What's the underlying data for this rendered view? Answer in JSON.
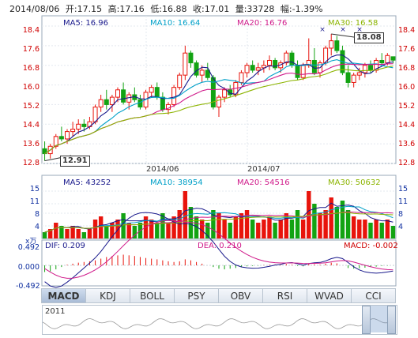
{
  "header": {
    "date": "2014/08/06",
    "open": "开:17.15",
    "high": "高:17.16",
    "low": "低:16.88",
    "close": "收:17.01",
    "volume": "量:33728",
    "change": "幅:-1.39%"
  },
  "price_panel": {
    "ma_labels": {
      "ma5": "MA5: 16.96",
      "ma10": "MA10: 16.64",
      "ma20": "MA20: 16.76",
      "ma30": "MA30: 16.58"
    },
    "y_ticks": [
      "18.4",
      "17.6",
      "16.8",
      "16.0",
      "15.2",
      "14.4",
      "13.6",
      "12.8"
    ],
    "x_ticks": [
      "2014/06",
      "2014/07"
    ],
    "high_callout": "18.08",
    "low_callout": "12.91",
    "colors": {
      "up": "#e8140c",
      "down": "#12a312",
      "ma5": "#1a1a8c",
      "ma10": "#00a0c8",
      "ma20": "#d01a8a",
      "ma30": "#8cb400"
    }
  },
  "volume_panel": {
    "ma_labels": {
      "ma5": "MA5: 43252",
      "ma10": "MA10: 38954",
      "ma20": "MA20: 54516",
      "ma30": "MA30: 50632"
    },
    "y_ticks": [
      "15",
      "11",
      "8",
      "4"
    ],
    "unit": "x万"
  },
  "macd_panel": {
    "labels": {
      "dif": "DIF: 0.209",
      "dea": "DEA: 0.210",
      "macd": "MACD: -0.002"
    },
    "y_ticks": [
      "0.492",
      "0.000",
      "-0.492"
    ]
  },
  "tabs": [
    "MACD",
    "KDJ",
    "BOLL",
    "PSY",
    "OBV",
    "RSI",
    "WVAD",
    "CCI"
  ],
  "active_tab": "MACD",
  "navigator": {
    "year": "2011"
  },
  "chart_data": {
    "type": "candlestick",
    "x_axis_labels": [
      "2014/06",
      "2014/07"
    ],
    "ylim": [
      12.8,
      18.4
    ],
    "candles": [
      {
        "o": 13.4,
        "h": 13.7,
        "l": 12.91,
        "c": 13.2
      },
      {
        "o": 13.2,
        "h": 13.6,
        "l": 13.0,
        "c": 13.5
      },
      {
        "o": 13.5,
        "h": 14.0,
        "l": 13.4,
        "c": 13.9
      },
      {
        "o": 13.9,
        "h": 14.3,
        "l": 13.7,
        "c": 13.8
      },
      {
        "o": 13.8,
        "h": 14.2,
        "l": 13.6,
        "c": 14.1
      },
      {
        "o": 14.1,
        "h": 14.5,
        "l": 13.9,
        "c": 14.2
      },
      {
        "o": 14.2,
        "h": 14.6,
        "l": 14.0,
        "c": 14.4
      },
      {
        "o": 14.4,
        "h": 14.6,
        "l": 14.1,
        "c": 14.3
      },
      {
        "o": 14.3,
        "h": 14.7,
        "l": 14.2,
        "c": 14.5
      },
      {
        "o": 14.5,
        "h": 15.2,
        "l": 14.4,
        "c": 15.1
      },
      {
        "o": 15.1,
        "h": 15.6,
        "l": 14.9,
        "c": 15.4
      },
      {
        "o": 15.4,
        "h": 15.8,
        "l": 15.0,
        "c": 15.2
      },
      {
        "o": 15.2,
        "h": 15.6,
        "l": 14.9,
        "c": 15.5
      },
      {
        "o": 15.5,
        "h": 15.9,
        "l": 15.3,
        "c": 15.8
      },
      {
        "o": 15.8,
        "h": 16.1,
        "l": 15.2,
        "c": 15.3
      },
      {
        "o": 15.3,
        "h": 15.7,
        "l": 15.0,
        "c": 15.6
      },
      {
        "o": 15.6,
        "h": 15.9,
        "l": 15.3,
        "c": 15.4
      },
      {
        "o": 15.4,
        "h": 15.6,
        "l": 15.0,
        "c": 15.1
      },
      {
        "o": 15.1,
        "h": 15.8,
        "l": 15.0,
        "c": 15.7
      },
      {
        "o": 15.7,
        "h": 16.0,
        "l": 15.5,
        "c": 15.9
      },
      {
        "o": 15.9,
        "h": 16.1,
        "l": 15.4,
        "c": 15.5
      },
      {
        "o": 15.5,
        "h": 15.7,
        "l": 14.9,
        "c": 15.0
      },
      {
        "o": 15.0,
        "h": 15.3,
        "l": 14.8,
        "c": 15.2
      },
      {
        "o": 15.2,
        "h": 16.0,
        "l": 15.1,
        "c": 15.9
      },
      {
        "o": 15.9,
        "h": 16.5,
        "l": 15.8,
        "c": 16.4
      },
      {
        "o": 16.4,
        "h": 17.6,
        "l": 16.2,
        "c": 17.3
      },
      {
        "o": 17.3,
        "h": 17.4,
        "l": 16.7,
        "c": 16.9
      },
      {
        "o": 16.9,
        "h": 17.0,
        "l": 16.3,
        "c": 16.4
      },
      {
        "o": 16.4,
        "h": 16.8,
        "l": 16.1,
        "c": 16.6
      },
      {
        "o": 16.6,
        "h": 16.9,
        "l": 16.2,
        "c": 16.3
      },
      {
        "o": 16.3,
        "h": 16.4,
        "l": 15.0,
        "c": 15.1
      },
      {
        "o": 15.1,
        "h": 15.6,
        "l": 14.7,
        "c": 15.5
      },
      {
        "o": 15.5,
        "h": 15.9,
        "l": 15.3,
        "c": 15.8
      },
      {
        "o": 15.8,
        "h": 16.0,
        "l": 15.5,
        "c": 15.6
      },
      {
        "o": 15.6,
        "h": 16.2,
        "l": 15.5,
        "c": 16.1
      },
      {
        "o": 16.1,
        "h": 16.6,
        "l": 16.0,
        "c": 16.5
      },
      {
        "o": 16.5,
        "h": 16.9,
        "l": 16.3,
        "c": 16.8
      },
      {
        "o": 16.8,
        "h": 17.0,
        "l": 16.5,
        "c": 16.6
      },
      {
        "o": 16.6,
        "h": 16.9,
        "l": 16.4,
        "c": 16.7
      },
      {
        "o": 16.7,
        "h": 17.0,
        "l": 16.5,
        "c": 16.8
      },
      {
        "o": 16.8,
        "h": 17.2,
        "l": 16.6,
        "c": 17.0
      },
      {
        "o": 17.0,
        "h": 17.1,
        "l": 16.6,
        "c": 16.7
      },
      {
        "o": 16.7,
        "h": 17.0,
        "l": 16.5,
        "c": 16.9
      },
      {
        "o": 16.9,
        "h": 17.4,
        "l": 16.8,
        "c": 17.3
      },
      {
        "o": 17.3,
        "h": 17.4,
        "l": 16.7,
        "c": 16.8
      },
      {
        "o": 16.8,
        "h": 17.0,
        "l": 16.2,
        "c": 16.3
      },
      {
        "o": 16.3,
        "h": 16.9,
        "l": 16.2,
        "c": 16.8
      },
      {
        "o": 16.8,
        "h": 17.9,
        "l": 16.7,
        "c": 17.0
      },
      {
        "o": 17.0,
        "h": 17.5,
        "l": 16.4,
        "c": 16.5
      },
      {
        "o": 16.5,
        "h": 17.0,
        "l": 16.3,
        "c": 16.9
      },
      {
        "o": 16.9,
        "h": 17.6,
        "l": 16.8,
        "c": 17.5
      },
      {
        "o": 17.5,
        "h": 18.08,
        "l": 17.2,
        "c": 17.8
      },
      {
        "o": 17.8,
        "h": 18.0,
        "l": 17.3,
        "c": 17.4
      },
      {
        "o": 17.4,
        "h": 17.6,
        "l": 16.4,
        "c": 16.5
      },
      {
        "o": 16.5,
        "h": 16.8,
        "l": 15.9,
        "c": 16.1
      },
      {
        "o": 16.1,
        "h": 16.5,
        "l": 15.9,
        "c": 16.4
      },
      {
        "o": 16.4,
        "h": 16.7,
        "l": 16.2,
        "c": 16.5
      },
      {
        "o": 16.5,
        "h": 16.9,
        "l": 16.3,
        "c": 16.8
      },
      {
        "o": 16.8,
        "h": 17.0,
        "l": 16.5,
        "c": 16.6
      },
      {
        "o": 16.6,
        "h": 17.1,
        "l": 16.5,
        "c": 17.0
      },
      {
        "o": 17.0,
        "h": 17.3,
        "l": 16.8,
        "c": 16.9
      },
      {
        "o": 16.9,
        "h": 17.3,
        "l": 16.8,
        "c": 17.2
      },
      {
        "o": 17.15,
        "h": 17.16,
        "l": 16.88,
        "c": 17.01
      }
    ],
    "volume": [
      2,
      3,
      5,
      4,
      3,
      4,
      3,
      2,
      3,
      6,
      7,
      4,
      5,
      6,
      8,
      5,
      4,
      5,
      7,
      6,
      5,
      8,
      5,
      7,
      9,
      15,
      10,
      7,
      6,
      5,
      9,
      8,
      6,
      5,
      7,
      8,
      9,
      6,
      5,
      6,
      7,
      5,
      6,
      8,
      6,
      9,
      6,
      15,
      11,
      8,
      9,
      13,
      10,
      12,
      9,
      7,
      6,
      6,
      5,
      6,
      5,
      6,
      4
    ],
    "macd": {
      "dif_range": [
        -0.492,
        0.492
      ],
      "histogram": [
        -0.2,
        -0.18,
        -0.12,
        -0.05,
        0.02,
        0.05,
        0.08,
        0.1,
        0.12,
        0.15,
        0.2,
        0.25,
        0.28,
        0.3,
        0.32,
        0.3,
        0.28,
        0.25,
        0.22,
        0.2,
        0.18,
        0.15,
        0.12,
        0.1,
        0.12,
        0.18,
        0.15,
        0.1,
        0.05,
        0.0,
        -0.05,
        -0.1,
        -0.12,
        -0.1,
        -0.08,
        -0.05,
        -0.03,
        -0.02,
        -0.01,
        0.01,
        0.02,
        0.03,
        0.02,
        0.04,
        0.02,
        -0.02,
        -0.03,
        0.04,
        0.03,
        0.02,
        0.05,
        0.08,
        0.06,
        0.0,
        -0.08,
        -0.1,
        -0.09,
        -0.07,
        -0.05,
        -0.04,
        -0.02,
        -0.01,
        -0.002
      ]
    }
  }
}
